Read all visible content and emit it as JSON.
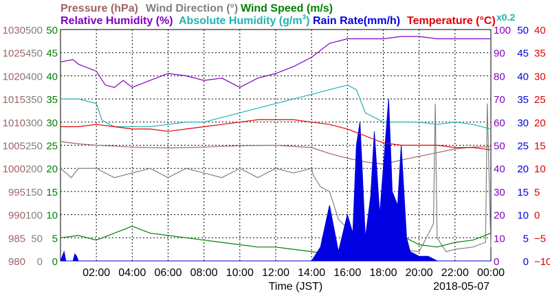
{
  "legend": {
    "pressure": "Pressure (hPa)",
    "wind_direction": "Wind Direction (°)",
    "wind_speed": "Wind Speed (m/s)",
    "relative_humidity": "Relative Humidity (%)",
    "absolute_humidity_prefix": "Absolute Humidity (g/m",
    "absolute_humidity_sup": "3",
    "absolute_humidity_suffix": ")",
    "rain_rate": "Rain Rate(mm/h)",
    "temperature": "Temperature (°C)",
    "abs_hum_scale_note": "x0.2"
  },
  "xlabel": "Time (JST)",
  "date_label": "2018-05-07",
  "colors": {
    "pressure": "#9e6464",
    "wind_direction": "#808080",
    "wind_speed": "#008000",
    "relative_humidity": "#8000c0",
    "absolute_humidity": "#20b2b2",
    "rain_rate": "#0000e0",
    "temperature": "#e00000"
  },
  "chart_data": {
    "type": "line",
    "x_unit": "hours (JST)",
    "xlim": [
      0,
      24
    ],
    "x_ticks": [
      2,
      4,
      6,
      8,
      10,
      12,
      14,
      16,
      18,
      20,
      22,
      24
    ],
    "x_tick_labels": [
      "02:00",
      "04:00",
      "06:00",
      "08:00",
      "10:00",
      "12:00",
      "14:00",
      "16:00",
      "18:00",
      "20:00",
      "22:00",
      "00:00"
    ],
    "grid": true,
    "axes": {
      "pressure": {
        "side": "left",
        "range": [
          980,
          1030
        ],
        "ticks": [
          "980",
          "985",
          "990",
          "995",
          "1000",
          "1005",
          "1010",
          "1015",
          "1020",
          "1025",
          "1030"
        ]
      },
      "wind_direction": {
        "side": "left",
        "range": [
          0,
          500
        ],
        "ticks": [
          "0",
          "50",
          "100",
          "150",
          "200",
          "250",
          "300",
          "350",
          "400",
          "450",
          "500"
        ]
      },
      "wind_speed": {
        "side": "left",
        "range": [
          0,
          50
        ],
        "ticks": [
          "0",
          "5",
          "10",
          "15",
          "20",
          "25",
          "30",
          "35",
          "40",
          "45",
          "50"
        ]
      },
      "relative_humidity": {
        "side": "right",
        "range": [
          0,
          100
        ],
        "ticks": [
          "0",
          "10",
          "20",
          "30",
          "40",
          "50",
          "60",
          "70",
          "80",
          "90",
          "100"
        ]
      },
      "rain_rate": {
        "side": "right",
        "range": [
          0,
          50
        ],
        "ticks": [
          "0",
          "5",
          "10",
          "15",
          "20",
          "25",
          "30",
          "35",
          "40",
          "45",
          "50"
        ]
      },
      "temperature": {
        "side": "right",
        "range": [
          -10,
          40
        ],
        "ticks": [
          "−10",
          "−5",
          "0",
          "5",
          "10",
          "15",
          "20",
          "25",
          "30",
          "35",
          "40"
        ]
      }
    },
    "series": [
      {
        "name": "Pressure (hPa)",
        "axis": "pressure",
        "color": "#9e6464",
        "x": [
          0,
          1,
          2,
          3,
          4,
          6,
          8,
          10,
          12,
          14,
          15,
          16,
          17,
          18,
          19,
          20,
          21,
          22,
          23,
          24
        ],
        "y": [
          1005.8,
          1005.3,
          1005,
          1004.8,
          1004.6,
          1004.4,
          1004.6,
          1004.9,
          1005,
          1004.5,
          1003.2,
          1002.2,
          1001.4,
          1000.9,
          1001.8,
          1002.6,
          1003.4,
          1004.2,
          1004.6,
          1004.7
        ]
      },
      {
        "name": "Wind Direction (°)",
        "axis": "wind_direction",
        "color": "#808080",
        "x": [
          0,
          0.6,
          1,
          2,
          3,
          4,
          5,
          6,
          7,
          8,
          9,
          10,
          11,
          12,
          13,
          14,
          14.1,
          14.5,
          15,
          15.5,
          16,
          16.4,
          17,
          18,
          19,
          20,
          20.8,
          20.9,
          21,
          21.5,
          22,
          23,
          23.7,
          23.8,
          24
        ],
        "y": [
          200,
          180,
          200,
          200,
          180,
          190,
          200,
          180,
          200,
          190,
          180,
          200,
          180,
          200,
          190,
          200,
          185,
          160,
          150,
          90,
          70,
          60,
          30,
          25,
          25,
          20,
          80,
          340,
          50,
          20,
          25,
          30,
          40,
          340,
          30
        ]
      },
      {
        "name": "Wind Speed (m/s)",
        "axis": "wind_speed",
        "color": "#008000",
        "x": [
          0,
          1,
          2,
          3,
          4,
          5,
          6,
          7,
          8,
          9,
          10,
          11,
          12,
          13,
          14,
          15,
          16,
          17,
          18,
          19,
          20,
          21,
          22,
          23,
          24
        ],
        "y": [
          5,
          5.5,
          4.5,
          6,
          7.5,
          6,
          5.5,
          5,
          4.5,
          4,
          3.5,
          3,
          3,
          2.5,
          2,
          1.5,
          2.5,
          4,
          5,
          5.5,
          3.5,
          3,
          4,
          4.5,
          6
        ]
      },
      {
        "name": "Relative Humidity (%)",
        "axis": "relative_humidity",
        "color": "#8000c0",
        "x": [
          0,
          0.7,
          1,
          2,
          2.5,
          3,
          3.5,
          4,
          5,
          6,
          7,
          8,
          9,
          10,
          11,
          12,
          13,
          14,
          15,
          16,
          17,
          18,
          19,
          20,
          21,
          22,
          23,
          24
        ],
        "y": [
          86,
          87,
          85,
          82,
          76,
          75,
          78,
          75,
          78,
          81,
          80,
          78,
          79,
          75,
          79,
          81,
          84,
          88,
          94,
          96,
          96,
          96,
          97,
          97,
          96,
          96,
          96,
          96
        ]
      },
      {
        "name": "Absolute Humidity (g/m3)",
        "axis": "relative_humidity",
        "color": "#20b2b2",
        "x": [
          0,
          1,
          1.5,
          2,
          2.3,
          2.5,
          3,
          4,
          5,
          6,
          7,
          8,
          9,
          10,
          11,
          12,
          13,
          14,
          15,
          16,
          16.5,
          17,
          18,
          19,
          20,
          21,
          22,
          23,
          24
        ],
        "y": [
          70,
          70,
          69,
          68,
          61,
          60,
          58,
          58,
          58,
          59,
          60,
          60,
          62,
          64,
          66,
          68,
          70,
          72,
          74,
          76,
          74,
          64,
          60,
          60,
          60,
          59,
          60,
          59,
          57
        ]
      },
      {
        "name": "Rain Rate(mm/h)",
        "axis": "rain_rate",
        "color": "#0000e0",
        "x": [
          0,
          0.2,
          0.3,
          0.4,
          0.7,
          0.8,
          0.9,
          1,
          14,
          14.5,
          15,
          15.5,
          16,
          16.3,
          16.5,
          16.7,
          17,
          17.3,
          17.5,
          17.8,
          18,
          18.3,
          18.5,
          18.8,
          19,
          19.3,
          19.5,
          20,
          20.5,
          21,
          21.5,
          22,
          22.5,
          23,
          24
        ],
        "y": [
          0,
          2,
          0,
          0,
          0,
          1.5,
          1,
          0,
          0,
          3,
          12,
          2,
          10,
          6,
          25,
          30,
          5,
          14,
          28,
          10,
          20,
          35,
          15,
          12,
          25,
          5,
          2,
          1,
          1,
          0,
          0,
          0,
          0,
          0,
          0
        ]
      },
      {
        "name": "Temperature (°C)",
        "axis": "temperature",
        "color": "#e00000",
        "x": [
          0,
          1,
          2,
          3,
          4,
          5,
          6,
          7,
          8,
          9,
          10,
          11,
          12,
          13,
          14,
          15,
          16,
          17,
          18,
          19,
          20,
          21,
          22,
          23,
          24
        ],
        "y": [
          19,
          19,
          19.5,
          19,
          18.5,
          18.5,
          18,
          18.5,
          19,
          19.5,
          20,
          20.5,
          20.5,
          20.5,
          20,
          19.5,
          18.5,
          17,
          15.5,
          15,
          15,
          15,
          14.5,
          14.5,
          14
        ]
      }
    ]
  }
}
